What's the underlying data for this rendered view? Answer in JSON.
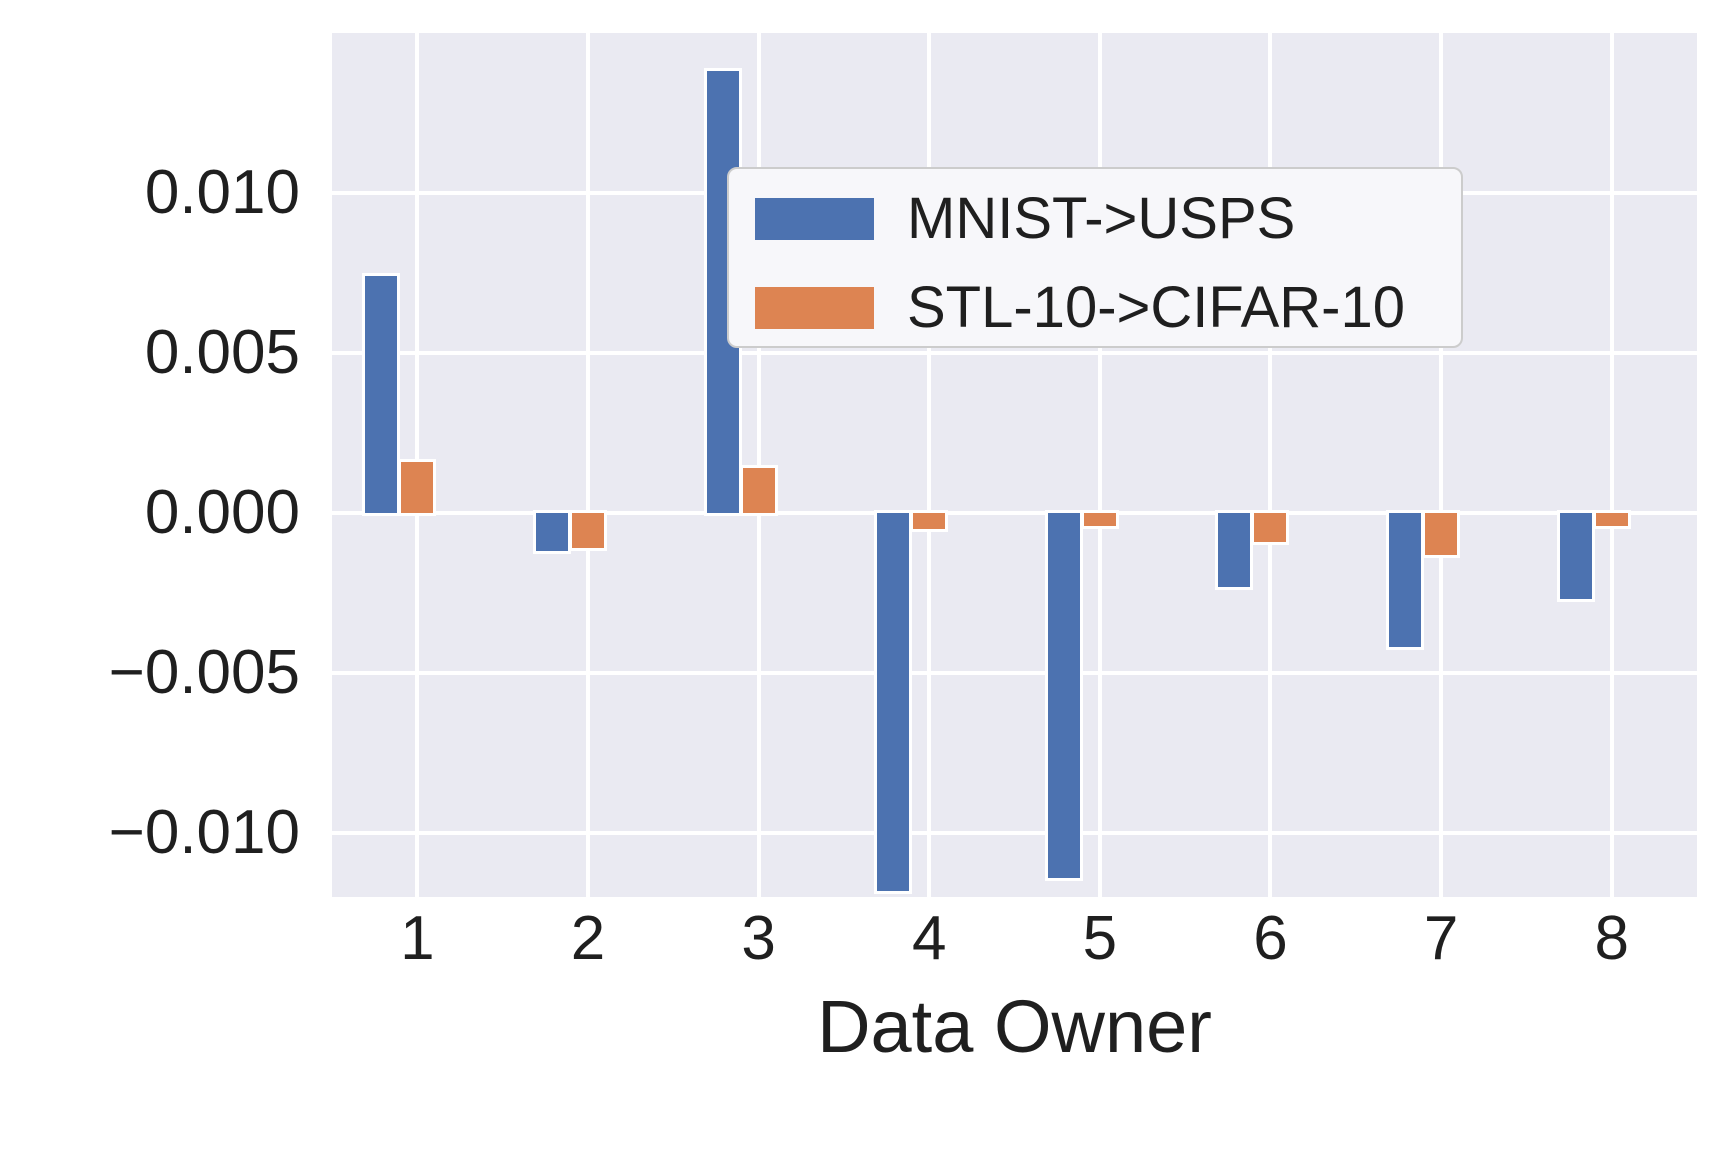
{
  "figure": {
    "background": "#ffffff",
    "plot_background": "#eaeaf2",
    "grid_color": "#ffffff",
    "text_color": "#1f1f1f"
  },
  "chart_data": {
    "type": "bar",
    "title": "",
    "xlabel": "Data Owner",
    "ylabel": "",
    "categories": [
      "1",
      "2",
      "3",
      "4",
      "5",
      "6",
      "7",
      "8"
    ],
    "series": [
      {
        "name": "MNIST->USPS",
        "color": "#4C72B0",
        "values": [
          0.0074,
          -0.0012,
          0.0138,
          -0.0118,
          -0.0114,
          -0.0023,
          -0.0042,
          -0.0027
        ]
      },
      {
        "name": "STL-10->CIFAR-10",
        "color": "#DD8452",
        "values": [
          0.0016,
          -0.0011,
          0.0014,
          -0.0005,
          -0.0004,
          -0.0009,
          -0.0013,
          -0.0004
        ]
      }
    ],
    "ylim": [
      -0.012,
      0.015
    ],
    "yticks": [
      {
        "value": 0.01,
        "label": "0.010"
      },
      {
        "value": 0.005,
        "label": "0.005"
      },
      {
        "value": 0.0,
        "label": "0.000"
      },
      {
        "value": -0.005,
        "label": "−0.005"
      },
      {
        "value": -0.01,
        "label": "−0.010"
      }
    ],
    "grid": true,
    "legend_position": "upper right inside"
  }
}
